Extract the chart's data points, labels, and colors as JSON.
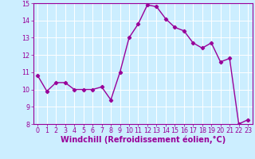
{
  "x": [
    0,
    1,
    2,
    3,
    4,
    5,
    6,
    7,
    8,
    9,
    10,
    11,
    12,
    13,
    14,
    15,
    16,
    17,
    18,
    19,
    20,
    21,
    22,
    23
  ],
  "y": [
    10.8,
    9.9,
    10.4,
    10.4,
    10.0,
    10.0,
    10.0,
    10.15,
    9.4,
    11.0,
    13.0,
    13.8,
    14.9,
    14.8,
    14.1,
    13.6,
    13.4,
    12.7,
    12.4,
    12.7,
    11.6,
    11.8,
    8.0,
    8.25
  ],
  "line_color": "#990099",
  "marker": "D",
  "marker_size": 2.2,
  "bg_color": "#cceeff",
  "grid_color": "#ffffff",
  "xlabel": "Windchill (Refroidissement éolien,°C)",
  "xlabel_color": "#990099",
  "xlim": [
    -0.5,
    23.5
  ],
  "ylim": [
    8,
    15
  ],
  "yticks": [
    8,
    9,
    10,
    11,
    12,
    13,
    14,
    15
  ],
  "xticks": [
    0,
    1,
    2,
    3,
    4,
    5,
    6,
    7,
    8,
    9,
    10,
    11,
    12,
    13,
    14,
    15,
    16,
    17,
    18,
    19,
    20,
    21,
    22,
    23
  ],
  "tick_color": "#990099",
  "tick_fontsize": 5.8,
  "xlabel_fontsize": 7.0,
  "line_width": 1.0
}
